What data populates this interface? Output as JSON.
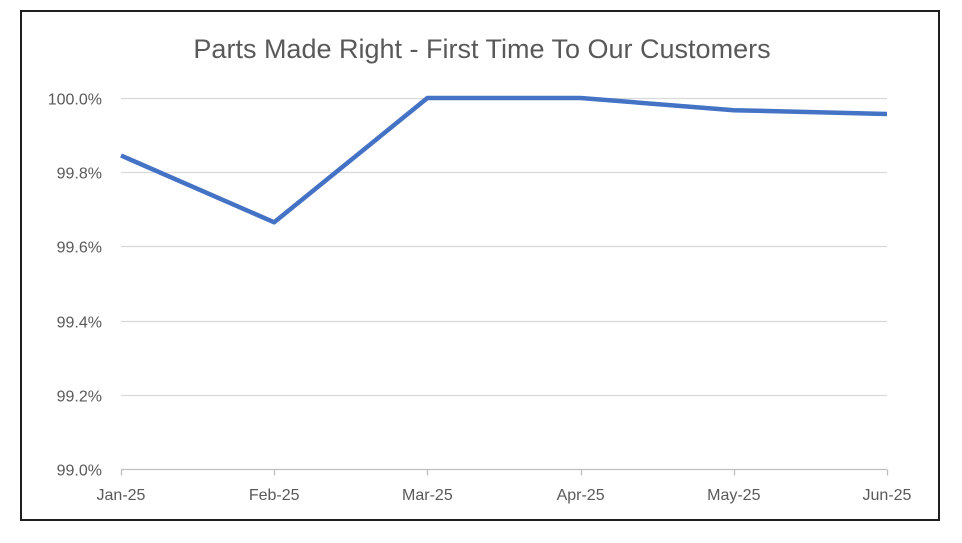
{
  "chart_data": {
    "type": "line",
    "title": "Parts Made Right - First Time To Our Customers",
    "xlabel": "",
    "ylabel": "",
    "categories": [
      "Jan-25",
      "Feb-25",
      "Mar-25",
      "Apr-25",
      "May-25",
      "Jun-25"
    ],
    "series": [
      {
        "values": [
          99.845,
          99.665,
          100.0,
          100.0,
          99.967,
          99.957
        ],
        "color": "#4472C4"
      }
    ],
    "ylim": [
      99.0,
      100.0
    ],
    "y_ticks": [
      99.0,
      99.2,
      99.4,
      99.6,
      99.8,
      100.0
    ],
    "y_tick_labels": [
      "99.0%",
      "99.2%",
      "99.4%",
      "99.6%",
      "99.8%",
      "100.0%"
    ],
    "grid": "horizontal",
    "legend": "none",
    "colors": {
      "line": "#4472C4",
      "gridline": "#d9d9d9",
      "axis": "#bfbfbf",
      "text": "#595959",
      "frame": "#1f1f1f"
    }
  }
}
